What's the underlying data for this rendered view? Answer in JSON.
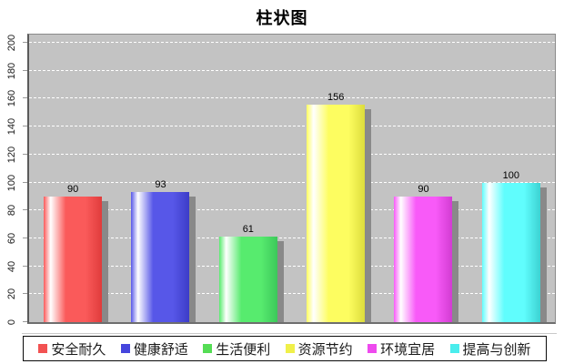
{
  "page_title": "柱状图",
  "chart_data": {
    "type": "bar",
    "title": "柱状图",
    "categories": [
      "安全耐久",
      "健康舒适",
      "生活便利",
      "资源节约",
      "环境宜居",
      "提高与创新"
    ],
    "values": [
      90,
      93,
      61,
      156,
      90,
      100
    ],
    "bar_colors": [
      "#fa5a5a",
      "#5757e8",
      "#57eb6e",
      "#fdfd60",
      "#f85af8",
      "#60fdfd"
    ],
    "bar_edge_colors": [
      "#e03c3c",
      "#3c3cc8",
      "#3cc85a",
      "#dcdc3c",
      "#d23cd2",
      "#3cd2d2"
    ],
    "legend_colors": [
      "#f25252",
      "#4646dd",
      "#55dd55",
      "#f0f04a",
      "#ee4aee",
      "#4aeded"
    ],
    "ylabel_ticks": [
      0,
      20,
      40,
      60,
      80,
      100,
      120,
      140,
      160,
      180,
      200
    ],
    "ylim": [
      0,
      200
    ],
    "grid": "horizontal-dashed",
    "grid_color": "#ffffff",
    "plot_bg": "#c3c3c3",
    "shadow_color": "#898989",
    "legend_position": "bottom",
    "xlabel": "",
    "ylabel": ""
  }
}
